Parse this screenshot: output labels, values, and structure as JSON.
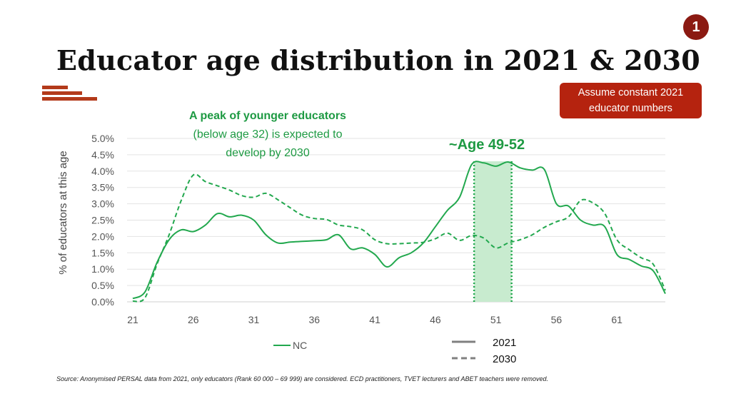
{
  "badge": "1",
  "title": "Educator age distribution in 2021 & 2030",
  "note": {
    "line1": "Assume constant 2021",
    "line2": "educator numbers"
  },
  "source": "Source: Anonymised PERSAL data from 2021, only educators (Rank 60 000 – 69 999) are considered. ECD practitioners, TVET lecturers and ABET teachers were removed.",
  "colors": {
    "accent_red": "#b5230f",
    "series_green": "#22a84e",
    "highlight_fill": "#c8ebcf",
    "text_green": "#1e9a43"
  },
  "chart_data": {
    "type": "line",
    "title": "",
    "xlabel": "",
    "ylabel": "% of educators at this age",
    "xlim": [
      21,
      65
    ],
    "ylim": [
      0,
      5
    ],
    "x_ticks": [
      "21",
      "26",
      "31",
      "36",
      "41",
      "46",
      "51",
      "56",
      "61"
    ],
    "y_ticks": [
      "0.0%",
      "0.5%",
      "1.0%",
      "1.5%",
      "2.0%",
      "2.5%",
      "3.0%",
      "3.5%",
      "4.0%",
      "4.5%",
      "5.0%"
    ],
    "grid": true,
    "series": [
      {
        "name": "2021",
        "style": "solid",
        "x": [
          21,
          22,
          23,
          24,
          25,
          26,
          27,
          28,
          29,
          30,
          31,
          32,
          33,
          34,
          35,
          36,
          37,
          38,
          39,
          40,
          41,
          42,
          43,
          44,
          45,
          46,
          47,
          48,
          49,
          50,
          51,
          52,
          53,
          54,
          55,
          56,
          57,
          58,
          59,
          60,
          61,
          62,
          63,
          64,
          65
        ],
        "values": [
          0.1,
          0.3,
          1.2,
          1.9,
          2.2,
          2.15,
          2.35,
          2.7,
          2.6,
          2.65,
          2.5,
          2.05,
          1.8,
          1.83,
          1.85,
          1.87,
          1.9,
          2.05,
          1.62,
          1.65,
          1.45,
          1.07,
          1.35,
          1.5,
          1.8,
          2.3,
          2.8,
          3.2,
          4.2,
          4.25,
          4.15,
          4.28,
          4.1,
          4.03,
          4.05,
          3.0,
          2.93,
          2.5,
          2.35,
          2.3,
          1.45,
          1.3,
          1.1,
          0.95,
          0.25
        ]
      },
      {
        "name": "2030",
        "style": "dashed",
        "x": [
          21,
          22,
          23,
          24,
          25,
          26,
          27,
          28,
          29,
          30,
          31,
          32,
          33,
          34,
          35,
          36,
          37,
          38,
          39,
          40,
          41,
          42,
          43,
          44,
          45,
          46,
          47,
          48,
          49,
          50,
          51,
          52,
          53,
          54,
          55,
          56,
          57,
          58,
          59,
          60,
          61,
          62,
          63,
          64,
          65
        ],
        "values": [
          0.02,
          0.12,
          1.15,
          2.05,
          3.1,
          3.88,
          3.68,
          3.55,
          3.42,
          3.25,
          3.2,
          3.32,
          3.12,
          2.88,
          2.65,
          2.55,
          2.52,
          2.35,
          2.3,
          2.2,
          1.9,
          1.78,
          1.78,
          1.8,
          1.82,
          1.93,
          2.1,
          1.88,
          2.03,
          1.95,
          1.65,
          1.8,
          1.9,
          2.05,
          2.28,
          2.45,
          2.6,
          3.1,
          3.03,
          2.7,
          1.9,
          1.6,
          1.35,
          1.15,
          0.35
        ]
      }
    ],
    "highlight": {
      "x_start": 49.2,
      "x_end": 52.3,
      "label": "~Age 49-52"
    },
    "annotation": {
      "bold": "A peak of younger educators",
      "line2": "(below age 32) is expected to",
      "line3": "develop by 2030"
    },
    "legend": {
      "series_label": "NC",
      "solid_label": "2021",
      "dashed_label": "2030"
    }
  }
}
